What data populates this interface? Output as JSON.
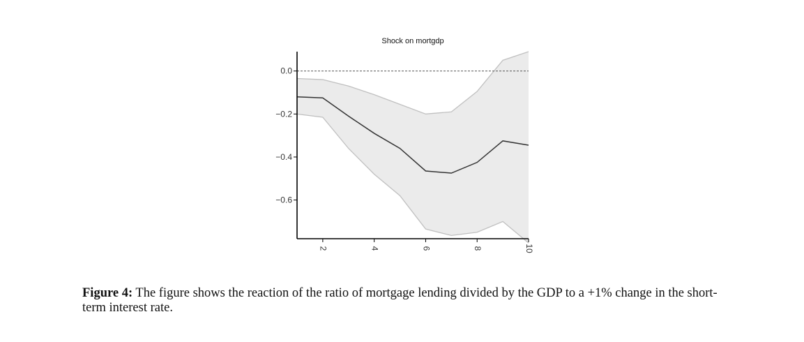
{
  "chart_data": {
    "type": "line",
    "title": "Shock on mortgdp",
    "xlabel": "",
    "ylabel": "",
    "x": [
      1,
      2,
      3,
      4,
      5,
      6,
      7,
      8,
      9,
      10
    ],
    "series": [
      {
        "values": [
          -0.12,
          -0.125,
          -0.21,
          -0.29,
          -0.36,
          -0.465,
          -0.475,
          -0.425,
          -0.325,
          -0.345
        ]
      }
    ],
    "band": {
      "lower": [
        -0.2,
        -0.215,
        -0.36,
        -0.48,
        -0.58,
        -0.735,
        -0.765,
        -0.75,
        -0.7,
        -0.8
      ],
      "upper": [
        -0.035,
        -0.04,
        -0.07,
        -0.11,
        -0.155,
        -0.2,
        -0.19,
        -0.095,
        0.05,
        0.09
      ]
    },
    "reference_line": 0.0,
    "xlim": [
      1,
      10
    ],
    "ylim": [
      -0.78,
      0.09
    ],
    "xticks": [
      2,
      4,
      6,
      8,
      10
    ],
    "xtick_labels": [
      "2",
      "4",
      "6",
      "8",
      "10"
    ],
    "yticks": [
      0.0,
      -0.2,
      -0.4,
      -0.6
    ],
    "ytick_labels": [
      "0.0",
      "−0.2",
      "−0.4",
      "−0.6"
    ],
    "grid": false,
    "legend": "none",
    "colors": {
      "line": "#333333",
      "band_fill": "#ebebeb",
      "band_edge": "#c0c0c0",
      "reference": "#555555",
      "axis": "#000000"
    }
  },
  "caption": {
    "label": "Figure 4:",
    "text": "The figure shows the reaction of the ratio of mortgage lending divided by the GDP to a +1% change in the short-term interest rate."
  }
}
